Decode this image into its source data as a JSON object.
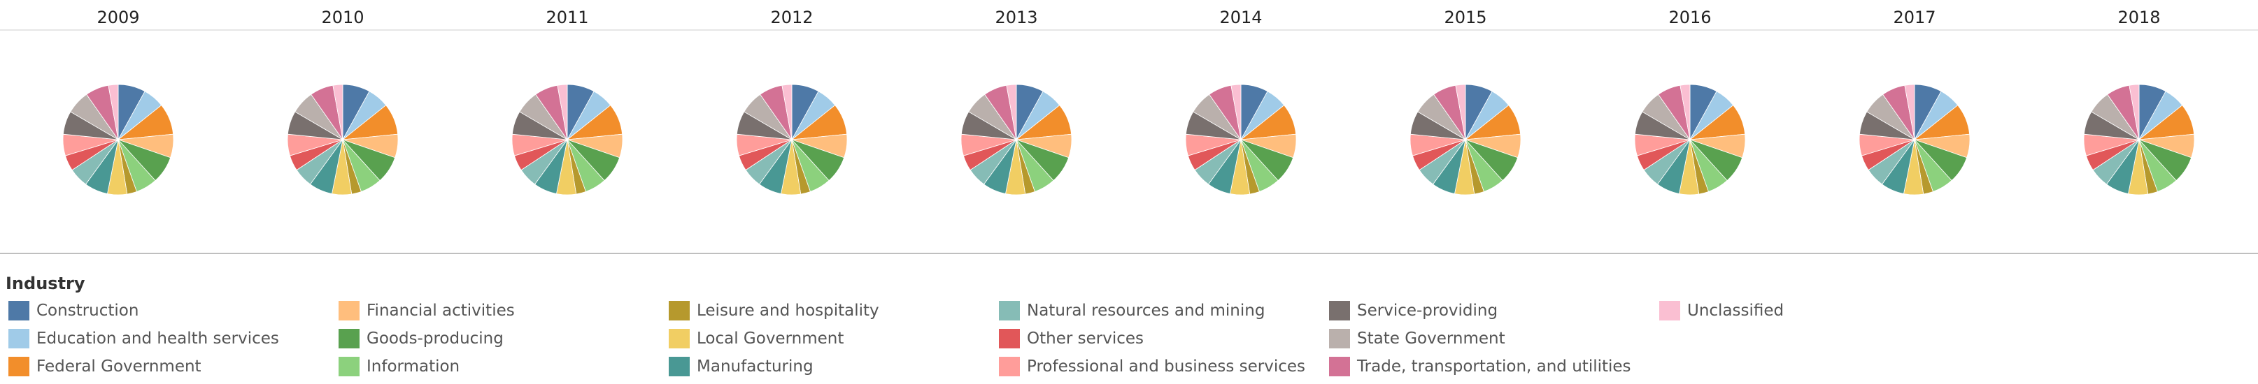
{
  "chart_data": {
    "type": "pie",
    "layout": "small-multiples",
    "years": [
      "2009",
      "2010",
      "2011",
      "2012",
      "2013",
      "2014",
      "2015",
      "2016",
      "2017",
      "2018"
    ],
    "legend_title": "Industry",
    "categories": [
      "Construction",
      "Education and health services",
      "Federal Government",
      "Financial activities",
      "Goods-producing",
      "Information",
      "Leisure and hospitality",
      "Local Government",
      "Manufacturing",
      "Natural resources and mining",
      "Other services",
      "Professional and business services",
      "Service-providing",
      "State Government",
      "Trade, transportation, and utilities",
      "Unclassified"
    ],
    "colors": [
      "#4e79a7",
      "#a0cbe8",
      "#f28e2b",
      "#ffbe7d",
      "#59a14f",
      "#8cd17d",
      "#b6992d",
      "#f1ce63",
      "#499894",
      "#86bcb6",
      "#e15759",
      "#ff9d9a",
      "#79706e",
      "#bab0ac",
      "#d37295",
      "#fabfd2"
    ],
    "pie_order": [
      "Construction",
      "Education and health services",
      "Federal Government",
      "Financial activities",
      "Goods-producing",
      "Information",
      "Leisure and hospitality",
      "Local Government",
      "Manufacturing",
      "Natural resources and mining",
      "Other services",
      "Professional and business services",
      "Service-providing",
      "State Government",
      "Trade, transportation, and utilities",
      "Unclassified"
    ],
    "values": [
      7,
      5.5,
      8,
      6,
      7,
      5.5,
      2.5,
      5,
      6,
      5,
      4,
      5.5,
      6,
      6,
      6,
      2.5
    ],
    "legend_position": "bottom"
  }
}
